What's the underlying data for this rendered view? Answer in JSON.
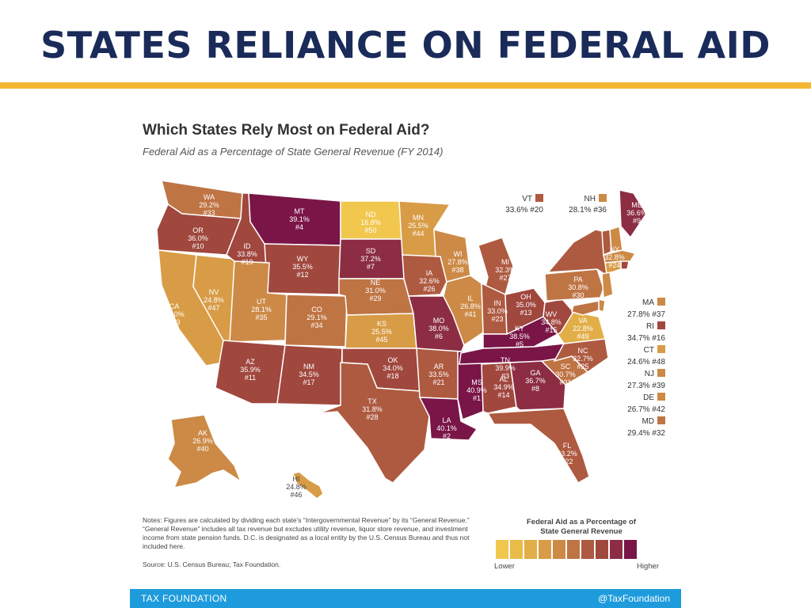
{
  "slide_title": "STATES RELIANCE ON FEDERAL AID",
  "chart": {
    "title": "Which States Rely Most on Federal Aid?",
    "subtitle": "Federal Aid as a Percentage of State General Revenue (FY 2014)"
  },
  "palette": [
    "#f2c74e",
    "#e9bc49",
    "#e2ae48",
    "#d89c46",
    "#cc8a46",
    "#bf7444",
    "#ae5a40",
    "#a0473e",
    "#8c2d43",
    "#7a1547"
  ],
  "chart_data": {
    "type": "choropleth",
    "title": "Which States Rely Most on Federal Aid?",
    "subtitle": "Federal Aid as a Percentage of State General Revenue (FY 2014)",
    "value_unit": "%",
    "states": [
      {
        "abbr": "WA",
        "value": 29.2,
        "rank": 33
      },
      {
        "abbr": "OR",
        "value": 36.0,
        "rank": 10
      },
      {
        "abbr": "CA",
        "value": 26.0,
        "rank": 43
      },
      {
        "abbr": "NV",
        "value": 24.8,
        "rank": 47
      },
      {
        "abbr": "ID",
        "value": 33.8,
        "rank": 19
      },
      {
        "abbr": "MT",
        "value": 39.1,
        "rank": 4
      },
      {
        "abbr": "WY",
        "value": 35.5,
        "rank": 12
      },
      {
        "abbr": "UT",
        "value": 28.1,
        "rank": 35
      },
      {
        "abbr": "AZ",
        "value": 35.9,
        "rank": 11
      },
      {
        "abbr": "CO",
        "value": 29.1,
        "rank": 34
      },
      {
        "abbr": "NM",
        "value": 34.5,
        "rank": 17
      },
      {
        "abbr": "ND",
        "value": 16.8,
        "rank": 50
      },
      {
        "abbr": "SD",
        "value": 37.2,
        "rank": 7
      },
      {
        "abbr": "NE",
        "value": 31.0,
        "rank": 29
      },
      {
        "abbr": "KS",
        "value": 25.5,
        "rank": 45
      },
      {
        "abbr": "OK",
        "value": 34.0,
        "rank": 18
      },
      {
        "abbr": "TX",
        "value": 31.8,
        "rank": 28
      },
      {
        "abbr": "MN",
        "value": 25.5,
        "rank": 44
      },
      {
        "abbr": "IA",
        "value": 32.6,
        "rank": 26
      },
      {
        "abbr": "MO",
        "value": 38.0,
        "rank": 6
      },
      {
        "abbr": "AR",
        "value": 33.5,
        "rank": 21
      },
      {
        "abbr": "LA",
        "value": 40.1,
        "rank": 2
      },
      {
        "abbr": "WI",
        "value": 27.8,
        "rank": 38
      },
      {
        "abbr": "IL",
        "value": 26.8,
        "rank": 41
      },
      {
        "abbr": "MS",
        "value": 40.9,
        "rank": 1
      },
      {
        "abbr": "MI",
        "value": 32.3,
        "rank": 27
      },
      {
        "abbr": "IN",
        "value": 33.0,
        "rank": 23
      },
      {
        "abbr": "KY",
        "value": 38.5,
        "rank": 5
      },
      {
        "abbr": "TN",
        "value": 39.9,
        "rank": 3
      },
      {
        "abbr": "AL",
        "value": 34.9,
        "rank": 14
      },
      {
        "abbr": "OH",
        "value": 35.0,
        "rank": 13
      },
      {
        "abbr": "GA",
        "value": 36.7,
        "rank": 8
      },
      {
        "abbr": "FL",
        "value": 33.2,
        "rank": 22
      },
      {
        "abbr": "SC",
        "value": 30.7,
        "rank": 31
      },
      {
        "abbr": "NC",
        "value": 32.7,
        "rank": 25
      },
      {
        "abbr": "WV",
        "value": 34.8,
        "rank": 15
      },
      {
        "abbr": "VA",
        "value": 22.8,
        "rank": 49
      },
      {
        "abbr": "PA",
        "value": 30.8,
        "rank": 30
      },
      {
        "abbr": "NY",
        "value": 32.8,
        "rank": 24
      },
      {
        "abbr": "ME",
        "value": 36.6,
        "rank": 9
      },
      {
        "abbr": "AK",
        "value": 26.9,
        "rank": 40
      },
      {
        "abbr": "HI",
        "value": 24.8,
        "rank": 46
      },
      {
        "abbr": "VT",
        "value": 33.6,
        "rank": 20
      },
      {
        "abbr": "NH",
        "value": 28.1,
        "rank": 36
      },
      {
        "abbr": "MA",
        "value": 27.8,
        "rank": 37
      },
      {
        "abbr": "RI",
        "value": 34.7,
        "rank": 16
      },
      {
        "abbr": "CT",
        "value": 24.6,
        "rank": 48
      },
      {
        "abbr": "NJ",
        "value": 27.3,
        "rank": 39
      },
      {
        "abbr": "DE",
        "value": 26.7,
        "rank": 42
      },
      {
        "abbr": "MD",
        "value": 29.4,
        "rank": 32
      }
    ],
    "legend": {
      "title_line1": "Federal Aid as a Percentage of",
      "title_line2": "State General Revenue",
      "low_label": "Lower",
      "high_label": "Higher"
    }
  },
  "notes": "Notes: Figures are calculated by dividing each state's “Intergovernmental Revenue” by its “General Revenue.” “General Revenue” includes all tax revenue but excludes utility revenue, liquor store revenue, and investment income from state pension funds. D.C. is designated as a local entity by the U.S. Census Bureau and thus not included here.",
  "source": "Source: U.S. Census Bureau; Tax Foundation.",
  "footer": {
    "left": "TAX FOUNDATION",
    "right": "@TaxFoundation"
  }
}
